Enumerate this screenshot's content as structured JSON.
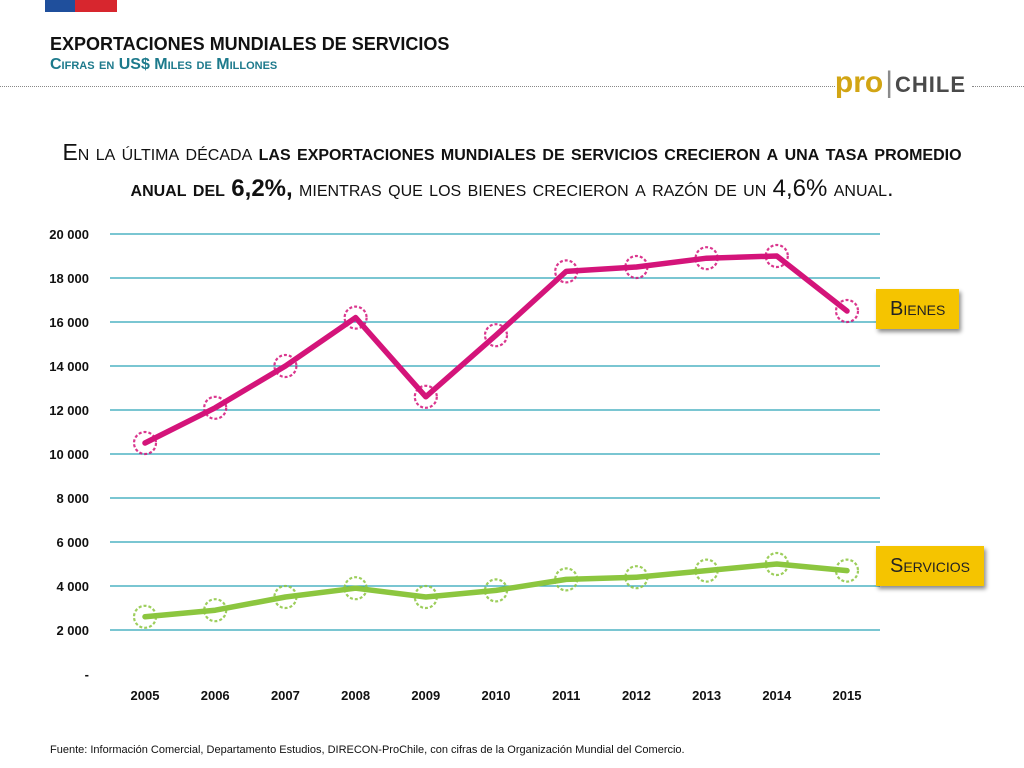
{
  "header": {
    "title": "EXPORTACIONES MUNDIALES DE SERVICIOS",
    "subtitle": "Cifras en US$ Miles de Millones",
    "logo_pro": "pro",
    "logo_separator": "|",
    "logo_chile": "CHILE"
  },
  "headline": {
    "part1": "En la última década ",
    "part2": "las exportaciones mundiales de servicios crecieron a una tasa promedio anual del ",
    "part3": "6,2%,",
    "part4": " mientras que los bienes crecieron a razón de un ",
    "part5": "4,6%",
    "part6": " anual."
  },
  "legend": {
    "bienes": "Bienes",
    "servicios": "Servicios"
  },
  "source": "Fuente: Información Comercial, Departamento Estudios, DIRECON-ProChile, con cifras de la Organización Mundial del Comercio.",
  "colors": {
    "bienes": "#d4147a",
    "servicios": "#8cc63f",
    "grid": "#2aa3b8",
    "tag": "#f5c400",
    "subtitle": "#1d7a8c"
  },
  "chart_data": {
    "type": "line",
    "categories": [
      "2005",
      "2006",
      "2007",
      "2008",
      "2009",
      "2010",
      "2011",
      "2012",
      "2013",
      "2014",
      "2015"
    ],
    "series": [
      {
        "name": "Bienes",
        "values": [
          10500,
          12100,
          14000,
          16200,
          12600,
          15400,
          18300,
          18500,
          18900,
          19000,
          16500
        ]
      },
      {
        "name": "Servicios",
        "values": [
          2600,
          2900,
          3500,
          3900,
          3500,
          3800,
          4300,
          4400,
          4700,
          5000,
          4700
        ]
      }
    ],
    "yticks": [
      "-",
      "2 000",
      "4 000",
      "6 000",
      "8 000",
      "10 000",
      "12 000",
      "14 000",
      "16 000",
      "18 000",
      "20 000"
    ],
    "ylim": [
      0,
      20000
    ],
    "grid": true
  }
}
